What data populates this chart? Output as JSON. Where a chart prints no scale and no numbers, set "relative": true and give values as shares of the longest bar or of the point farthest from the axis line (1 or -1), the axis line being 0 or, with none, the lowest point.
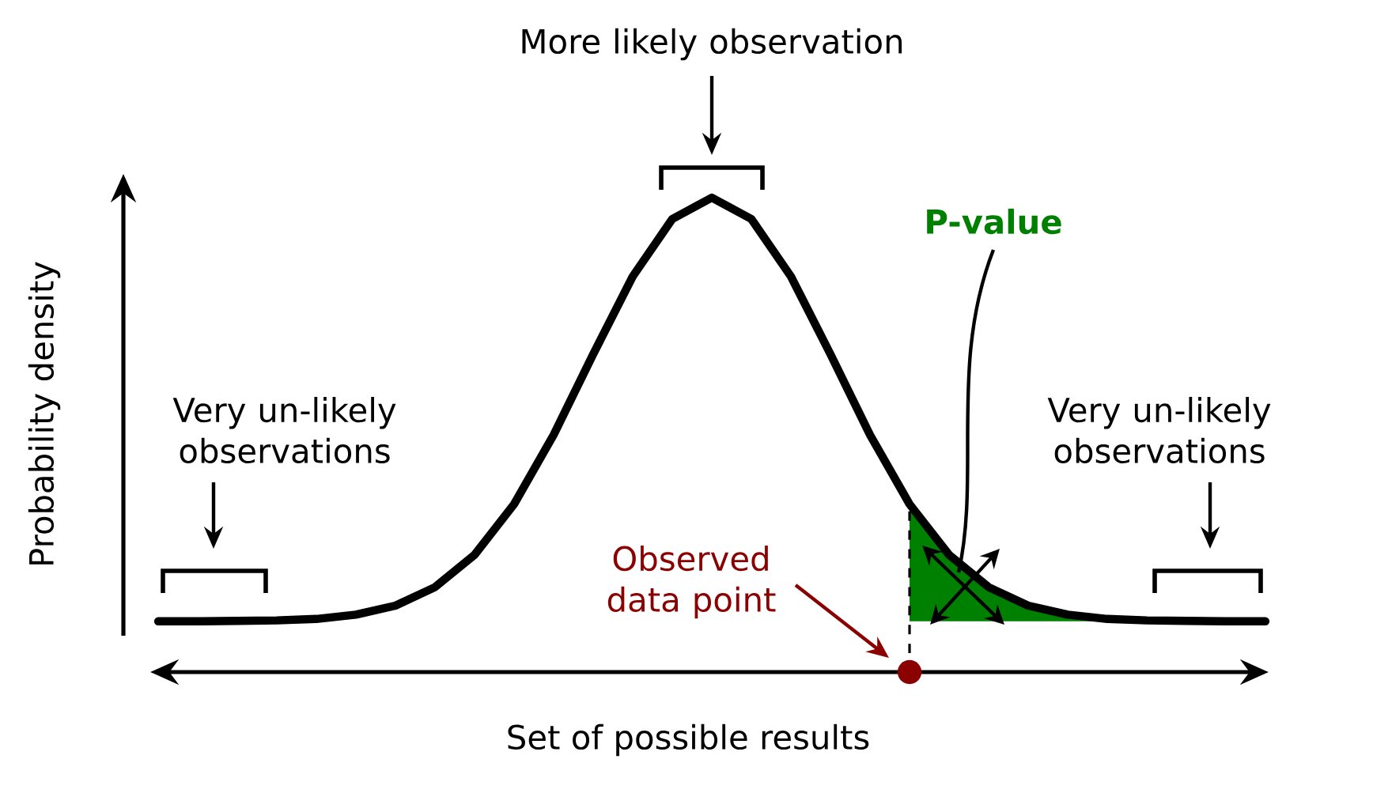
{
  "chart_data": {
    "type": "line",
    "relative": true,
    "ylabel": "Probability density",
    "xlabel": "Set of possible results",
    "categories": [
      null,
      null,
      null,
      null,
      null,
      null,
      null,
      null,
      null,
      null,
      null,
      null,
      null,
      null,
      null,
      null,
      null,
      null,
      null,
      null,
      null,
      null,
      null,
      null,
      null,
      null,
      null,
      null,
      null
    ],
    "series": [
      {
        "color": "#000000",
        "values": [
          0.107,
          0.107,
          0.108,
          0.109,
          0.112,
          0.121,
          0.14,
          0.179,
          0.247,
          0.354,
          0.5,
          0.67,
          0.834,
          0.955,
          1.0,
          0.955,
          0.834,
          0.67,
          0.5,
          0.354,
          0.247,
          0.179,
          0.14,
          0.121,
          0.112,
          0.109,
          0.108,
          0.107,
          0.107
        ],
        "lower": [
          null,
          null,
          null,
          null,
          null,
          null,
          null,
          null,
          null,
          null,
          null,
          null,
          null,
          null,
          null,
          null,
          null,
          null,
          null,
          0.107,
          0.107,
          0.107,
          0.107,
          0.107,
          0.107,
          0.107,
          null,
          null,
          null
        ],
        "upper": [
          null,
          null,
          null,
          null,
          null,
          null,
          null,
          null,
          null,
          null,
          null,
          null,
          null,
          null,
          null,
          null,
          null,
          null,
          null,
          0.354,
          0.247,
          0.179,
          0.14,
          0.121,
          0.112,
          0.109,
          null,
          null,
          null
        ]
      }
    ],
    "annotations": [
      "More likely observation",
      "Very un-likely observations",
      "Very un-likely observations",
      "P-value",
      "Observed data point"
    ]
  }
}
